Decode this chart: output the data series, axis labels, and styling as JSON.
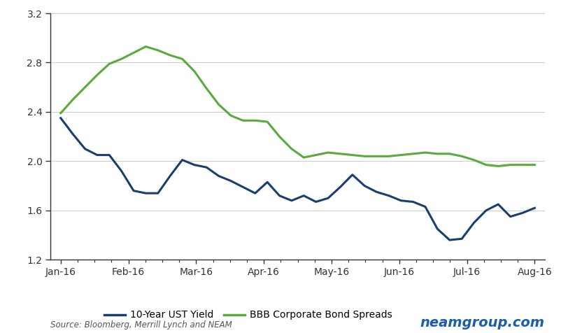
{
  "title": "",
  "source_text": "Source: Bloomberg, Merrill Lynch and NEAM",
  "watermark": "neamgroup.com",
  "ylim": [
    1.2,
    3.2
  ],
  "yticks": [
    1.2,
    1.6,
    2.0,
    2.4,
    2.8,
    3.2
  ],
  "ust_color": "#1a3f6f",
  "bbb_color": "#5aaa3c",
  "line_width": 2.2,
  "x_labels": [
    "Jan-16",
    "Feb-16",
    "Mar-16",
    "Apr-16",
    "May-16",
    "Jun-16",
    "Jul-16",
    "Aug-16"
  ],
  "ust_yield": [
    2.35,
    2.22,
    2.1,
    2.05,
    2.05,
    1.92,
    1.76,
    1.74,
    1.74,
    1.88,
    2.01,
    1.97,
    1.95,
    1.88,
    1.84,
    1.79,
    1.74,
    1.83,
    1.72,
    1.68,
    1.72,
    1.67,
    1.7,
    1.79,
    1.89,
    1.8,
    1.75,
    1.72,
    1.68,
    1.67,
    1.63,
    1.45,
    1.36,
    1.37,
    1.5,
    1.6,
    1.65,
    1.55,
    1.58,
    1.62
  ],
  "bbb_spreads": [
    2.39,
    2.5,
    2.6,
    2.7,
    2.79,
    2.83,
    2.88,
    2.93,
    2.9,
    2.86,
    2.83,
    2.73,
    2.59,
    2.46,
    2.37,
    2.33,
    2.33,
    2.32,
    2.2,
    2.1,
    2.03,
    2.05,
    2.07,
    2.06,
    2.05,
    2.04,
    2.04,
    2.04,
    2.05,
    2.06,
    2.07,
    2.06,
    2.06,
    2.04,
    2.01,
    1.97,
    1.96,
    1.97,
    1.97,
    1.97
  ],
  "legend_entries": [
    "10-Year UST Yield",
    "BBB Corporate Bond Spreads"
  ],
  "background_color": "#ffffff",
  "figsize": [
    8.03,
    4.76
  ],
  "dpi": 100
}
